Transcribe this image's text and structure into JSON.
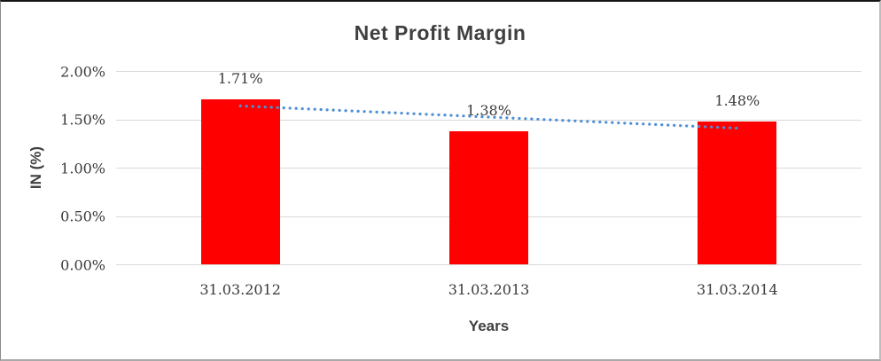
{
  "chart_data": {
    "type": "bar",
    "title": "Net Profit Margin",
    "xlabel": "Years",
    "ylabel": "IN (%)",
    "categories": [
      "31.03.2012",
      "31.03.2013",
      "31.03.2014"
    ],
    "values": [
      1.71,
      1.38,
      1.48
    ],
    "data_labels": [
      "1.71%",
      "1.38%",
      "1.48%"
    ],
    "y_ticks": [
      {
        "label": "2.00%",
        "value": 2.0
      },
      {
        "label": "1.50%",
        "value": 1.5
      },
      {
        "label": "1.00%",
        "value": 1.0
      },
      {
        "label": "0.50%",
        "value": 0.5
      },
      {
        "label": "0.00%",
        "value": 0.0
      }
    ],
    "ylim": [
      0,
      2.0
    ],
    "grid": true,
    "legend": "none",
    "bar_color": "#ff0000",
    "label_color": "#3a3a3a",
    "title_color": "#3f3f3f",
    "gridline_color": "#d9d9d9",
    "trendline": {
      "type": "linear",
      "style": "dotted",
      "color": "#4e8fd6",
      "start_value": 1.638,
      "end_value": 1.408
    }
  }
}
